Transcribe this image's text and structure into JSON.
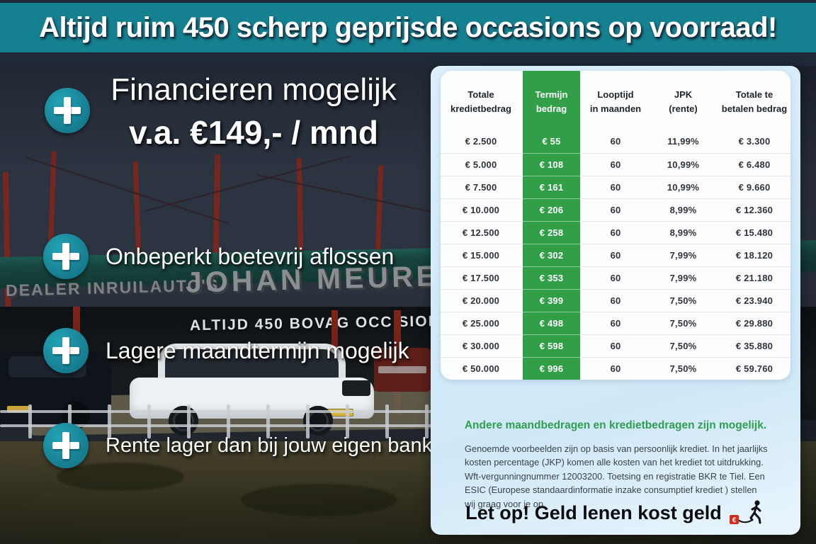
{
  "banner": {
    "headline": "Altijd ruim 450 scherp geprijsde occasions op voorraad!"
  },
  "usps": [
    {
      "line1": "Financieren mogelijk",
      "line2": "v.a. €149,- / mnd"
    },
    {
      "label": "Onbeperkt boetevrij aflossen"
    },
    {
      "label": "Lagere maandtermijn mogelijk"
    },
    {
      "label": "Rente lager dan bij jouw eigen bank"
    }
  ],
  "photo": {
    "sign_small": "DEALER INRUILAUTO'S",
    "sign_large": "JOHAN MEURE",
    "sign_window": "ALTIJD 450  BOVAG OCC  SIONS"
  },
  "panel": {
    "table": {
      "headers": [
        [
          "Totale",
          "kredietbedrag"
        ],
        [
          "Termijn",
          "bedrag"
        ],
        [
          "Looptijd",
          "in maanden"
        ],
        [
          "JPK",
          "(rente)"
        ],
        [
          "Totale te",
          "betalen bedrag"
        ]
      ],
      "highlight_column": 1,
      "rows": [
        [
          "€ 2.500",
          "€ 55",
          "60",
          "11,99%",
          "€ 3.300"
        ],
        [
          "€ 5.000",
          "€ 108",
          "60",
          "10,99%",
          "€ 6.480"
        ],
        [
          "€ 7.500",
          "€ 161",
          "60",
          "10,99%",
          "€ 9.660"
        ],
        [
          "€ 10.000",
          "€ 206",
          "60",
          "8,99%",
          "€ 12.360"
        ],
        [
          "€ 12.500",
          "€ 258",
          "60",
          "8,99%",
          "€ 15.480"
        ],
        [
          "€ 15.000",
          "€ 302",
          "60",
          "7,99%",
          "€ 18.120"
        ],
        [
          "€ 17.500",
          "€ 353",
          "60",
          "7,99%",
          "€ 21.180"
        ],
        [
          "€ 20.000",
          "€ 399",
          "60",
          "7,50%",
          "€ 23.940"
        ],
        [
          "€ 25.000",
          "€ 498",
          "60",
          "7,50%",
          "€ 29.880"
        ],
        [
          "€ 30.000",
          "€ 598",
          "60",
          "7,50%",
          "€ 35.880"
        ],
        [
          "€ 50.000",
          "€ 996",
          "60",
          "7,50%",
          "€ 59.760"
        ]
      ]
    },
    "note_title": "Andere maandbedragen en kredietbedragen zijn mogelijk.",
    "disclaimer": "Genoemde voorbeelden zijn op basis van persoonlijk krediet. In het jaarlijks kosten percentage (JKP) komen alle kosten van het krediet tot uitdrukking. Wft-vergunningnummer 12003200. Toetsing en registratie BKR te Tiel. Een ESIC (Europese standaardinformatie inzake consumptief krediet ) stellen wij graag voor je op.",
    "warning": "Let op! Geld lenen kost geld"
  },
  "icons": {
    "plus_icon": "plus in teal circle",
    "credit_warning_icon": "walking person dragging red euro weight"
  },
  "colors": {
    "banner_teal": "#15808f",
    "navy": "#1f2937",
    "highlight_green": "#319e48",
    "note_green": "#2f9e4f",
    "panel_blue": "#d2eaf8",
    "warning_red": "#d42b1e"
  }
}
